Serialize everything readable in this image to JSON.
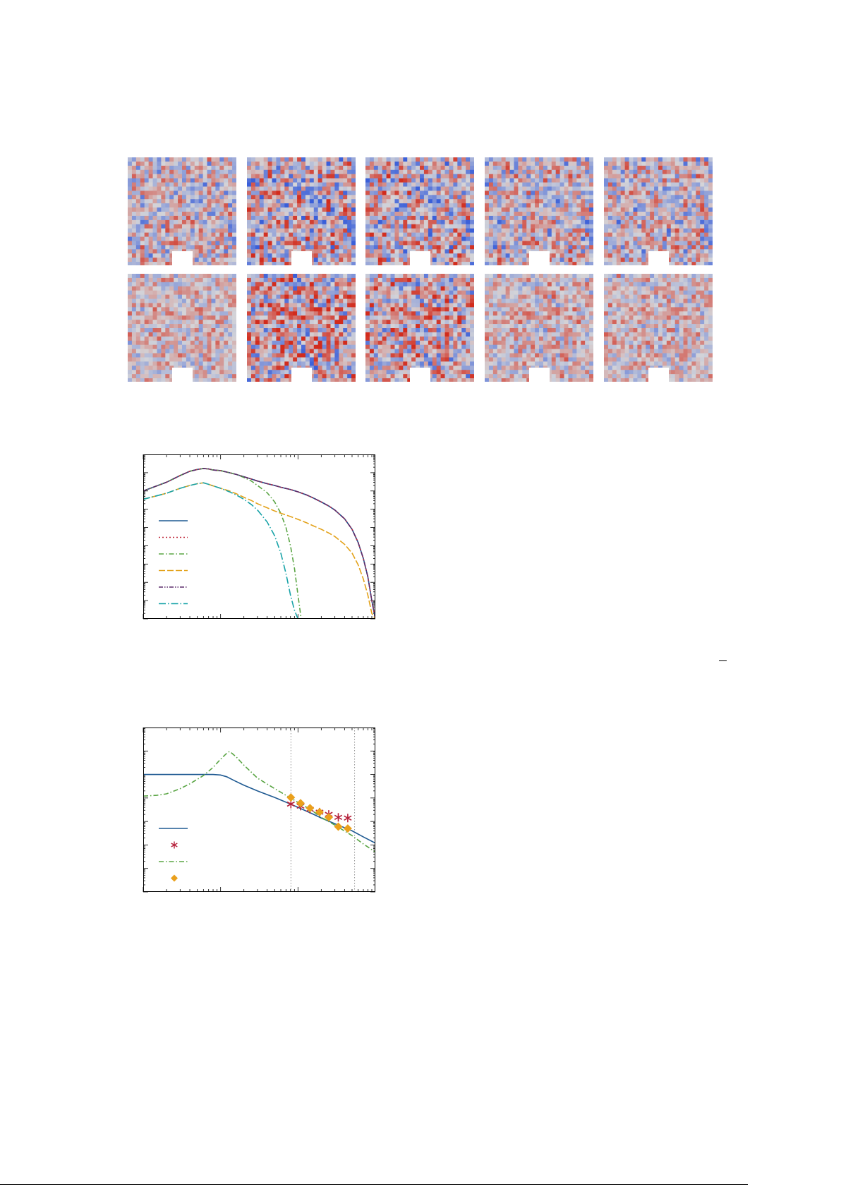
{
  "figure_fields": {
    "rows": 2,
    "columns": 5,
    "colormap": {
      "negative": "#3a5fd9",
      "neutral": "#d4d4d8",
      "positive": "#d22b1c"
    },
    "row_contrast": [
      [
        0.75,
        1.0,
        0.95,
        0.8,
        0.78
      ],
      [
        0.55,
        1.0,
        0.9,
        0.6,
        0.58
      ]
    ]
  },
  "chart_data": [
    {
      "type": "line",
      "xscale": "log",
      "yscale": "log",
      "xlim": [
        1,
        1000
      ],
      "ylim": [
        1e-09,
        1
      ],
      "grid": false,
      "legend_position": "left",
      "series": [
        {
          "style": "solid",
          "color": "#1f5a92",
          "x": [
            1,
            2,
            3,
            4,
            5,
            6,
            7,
            8,
            10,
            13,
            16,
            20,
            25,
            30,
            40,
            50,
            60,
            80,
            100,
            130,
            160,
            200,
            250,
            300,
            400,
            500,
            600,
            700,
            800,
            900,
            1000
          ],
          "y": [
            0.01,
            0.03,
            0.07,
            0.12,
            0.15,
            0.17,
            0.16,
            0.14,
            0.13,
            0.1,
            0.08,
            0.06,
            0.045,
            0.035,
            0.025,
            0.02,
            0.016,
            0.012,
            0.009,
            0.006,
            0.004,
            0.0025,
            0.0015,
            0.0009,
            0.0003,
            8e-05,
            1.5e-05,
            2e-06,
            2e-07,
            1e-08,
            1e-09
          ]
        },
        {
          "style": "dotted",
          "color": "#c0283a",
          "x": [
            1,
            2,
            3,
            4,
            5,
            6,
            7,
            8,
            10,
            13,
            16,
            20,
            25,
            30,
            40,
            50,
            60,
            80,
            100,
            130,
            160,
            200,
            250,
            300,
            400,
            500,
            600,
            700,
            800,
            900,
            1000
          ],
          "y": [
            0.01,
            0.03,
            0.07,
            0.12,
            0.15,
            0.17,
            0.16,
            0.14,
            0.13,
            0.1,
            0.08,
            0.06,
            0.045,
            0.035,
            0.025,
            0.02,
            0.016,
            0.012,
            0.009,
            0.006,
            0.004,
            0.0025,
            0.0015,
            0.0009,
            0.0003,
            8e-05,
            1.5e-05,
            2e-06,
            2e-07,
            1e-08,
            1e-09
          ]
        },
        {
          "style": "dashdot",
          "color": "#5aa544",
          "x": [
            1,
            2,
            3,
            4,
            5,
            6,
            7,
            8,
            10,
            13,
            16,
            20,
            25,
            30,
            40,
            50,
            60,
            70,
            80,
            90,
            100,
            110
          ],
          "y": [
            0.01,
            0.03,
            0.07,
            0.12,
            0.15,
            0.17,
            0.16,
            0.14,
            0.13,
            0.1,
            0.08,
            0.055,
            0.035,
            0.02,
            0.008,
            0.0025,
            0.0006,
            0.0001,
            1e-05,
            6e-07,
            2e-08,
            1e-09
          ]
        },
        {
          "style": "longdash",
          "color": "#e3a21a",
          "x": [
            1,
            2,
            3,
            4,
            5,
            6,
            7,
            8,
            10,
            13,
            16,
            20,
            25,
            30,
            40,
            50,
            60,
            80,
            100,
            130,
            160,
            200,
            250,
            300,
            400,
            500,
            600,
            700,
            800,
            900,
            1000
          ],
          "y": [
            0.0035,
            0.0075,
            0.014,
            0.02,
            0.025,
            0.028,
            0.023,
            0.019,
            0.014,
            0.01,
            0.007,
            0.0045,
            0.003,
            0.002,
            0.0012,
            0.0008,
            0.0006,
            0.0004,
            0.00028,
            0.00018,
            0.00012,
            8e-05,
            5e-05,
            3.2e-05,
            1.2e-05,
            4e-06,
            9e-07,
            1.5e-07,
            2e-08,
            2e-09,
            1e-09
          ]
        },
        {
          "style": "dashdotdot",
          "color": "#5b2b6b",
          "x": [
            1,
            2,
            3,
            4,
            5,
            6,
            7,
            8,
            10,
            13,
            16,
            20,
            25,
            30,
            40,
            50,
            60,
            80,
            100,
            130,
            160,
            200,
            250,
            300,
            400,
            500,
            600,
            700,
            800,
            900,
            1000
          ],
          "y": [
            0.01,
            0.03,
            0.07,
            0.12,
            0.15,
            0.17,
            0.16,
            0.14,
            0.13,
            0.1,
            0.08,
            0.06,
            0.045,
            0.035,
            0.025,
            0.02,
            0.016,
            0.012,
            0.009,
            0.006,
            0.004,
            0.0025,
            0.0015,
            0.0009,
            0.0003,
            8e-05,
            1.5e-05,
            2e-06,
            2e-07,
            1e-08,
            1e-09
          ]
        },
        {
          "style": "dashdot-long",
          "color": "#18a3a8",
          "x": [
            1,
            2,
            3,
            4,
            5,
            6,
            7,
            8,
            10,
            13,
            16,
            20,
            25,
            30,
            40,
            50,
            60,
            70,
            80,
            90,
            100
          ],
          "y": [
            0.0035,
            0.0075,
            0.014,
            0.02,
            0.025,
            0.028,
            0.023,
            0.019,
            0.014,
            0.009,
            0.006,
            0.0035,
            0.0018,
            0.0009,
            0.0002,
            3.5e-05,
            4e-06,
            3e-07,
            2e-08,
            3e-09,
            1e-09
          ]
        }
      ]
    },
    {
      "type": "line",
      "xscale": "log",
      "yscale": "log",
      "xlim": [
        1,
        1000
      ],
      "ylim": [
        1e-06,
        10
      ],
      "grid": false,
      "legend_position": "left",
      "reference_lines_x": [
        81,
        540
      ],
      "series": [
        {
          "style": "solid",
          "color": "#1f5a92",
          "x": [
            1,
            2,
            4,
            6,
            8,
            10,
            12,
            15,
            20,
            30,
            50,
            80,
            100,
            150,
            200,
            300,
            500,
            700,
            1000
          ],
          "y": [
            0.1,
            0.1,
            0.1,
            0.1,
            0.1,
            0.095,
            0.08,
            0.055,
            0.035,
            0.02,
            0.0105,
            0.0055,
            0.004,
            0.0022,
            0.0014,
            0.0008,
            0.0004,
            0.00022,
            0.00012
          ]
        },
        {
          "style": "asterisk",
          "color": "#b5203a",
          "x": [
            81,
            108,
            143,
            190,
            250,
            332,
            440
          ],
          "y": [
            0.0055,
            0.0045,
            0.0033,
            0.0025,
            0.002,
            0.0015,
            0.0014
          ]
        },
        {
          "style": "dashdot",
          "color": "#5aa544",
          "x": [
            1,
            1.5,
            2,
            3,
            4,
            6,
            8,
            10,
            12,
            13,
            14,
            16,
            20,
            30,
            50,
            80,
            100,
            150,
            200,
            300,
            500,
            700,
            1000
          ],
          "y": [
            0.012,
            0.013,
            0.015,
            0.025,
            0.04,
            0.09,
            0.2,
            0.45,
            0.8,
            0.95,
            0.8,
            0.55,
            0.25,
            0.07,
            0.025,
            0.01,
            0.0065,
            0.003,
            0.0015,
            0.0007,
            0.00025,
            0.00011,
            5e-05
          ]
        },
        {
          "style": "diamond",
          "color": "#eaa01c",
          "x": [
            81,
            108,
            143,
            190,
            250,
            332,
            440
          ],
          "y": [
            0.0105,
            0.006,
            0.0037,
            0.0025,
            0.0015,
            0.0006,
            0.0005
          ]
        }
      ]
    }
  ]
}
